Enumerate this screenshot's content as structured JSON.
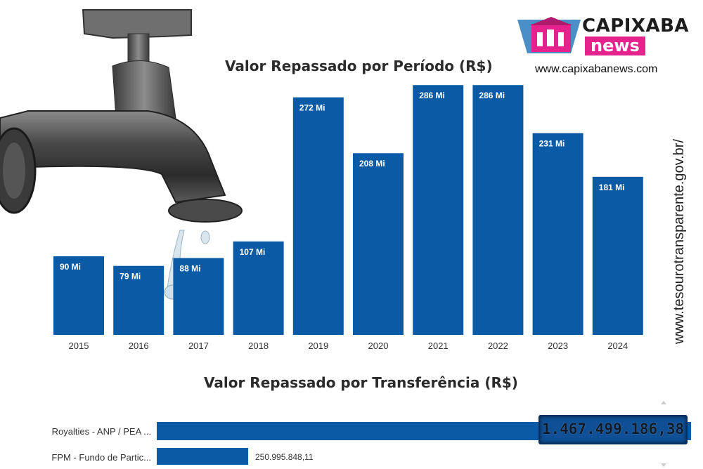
{
  "header": {
    "logo_top": "CAPIXABA",
    "logo_bottom": "news",
    "logo_url": "www.capixabanews.com",
    "side_url": "www.tesourotransparente.gov.br/"
  },
  "colors": {
    "bar": "#0a5aa5",
    "logo_accent": "#e6228c"
  },
  "chart_data": [
    {
      "type": "bar",
      "title": "Valor Repassado por Período (R$)",
      "categories": [
        "2015",
        "2016",
        "2017",
        "2018",
        "2019",
        "2020",
        "2021",
        "2022",
        "2023",
        "2024"
      ],
      "values": [
        90,
        79,
        88,
        107,
        272,
        208,
        286,
        286,
        231,
        181
      ],
      "data_labels": [
        "90 Mi",
        "79 Mi",
        "88 Mi",
        "107 Mi",
        "272 Mi",
        "208 Mi",
        "286 Mi",
        "286 Mi",
        "231 Mi",
        "181 Mi"
      ],
      "ylim": [
        0,
        300
      ],
      "grid": false
    },
    {
      "type": "bar",
      "orientation": "horizontal",
      "title": "Valor Repassado por Transferência (R$)",
      "categories": [
        "Royalties - ANP / PEA ...",
        "FPM - Fundo de Partic..."
      ],
      "values": [
        1467499186.38,
        250995848.11
      ],
      "data_labels": [
        "1.467.499.186,38",
        "250.995.848,11"
      ]
    }
  ]
}
